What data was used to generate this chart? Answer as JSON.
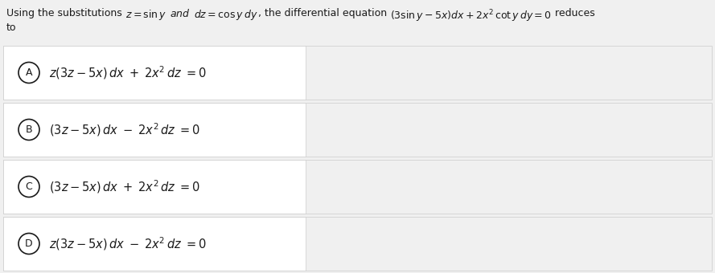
{
  "bg_color": "#f0f0f0",
  "box_bg_color": "#ffffff",
  "box_border_color": "#d0d0d0",
  "text_color": "#1a1a1a",
  "figsize": [
    8.89,
    3.4
  ],
  "dpi": 100,
  "header_parts": [
    {
      "text": "Using the substitutions ",
      "style": "normal",
      "size": 9
    },
    {
      "text": "$z = \\sin y$",
      "style": "italic",
      "size": 9
    },
    {
      "text": " ",
      "style": "normal",
      "size": 9
    },
    {
      "text": "$and$",
      "style": "italic",
      "size": 9
    },
    {
      "text": " ",
      "style": "normal",
      "size": 9
    },
    {
      "text": "$dz = \\cos y\\, dy$",
      "style": "italic",
      "size": 9
    },
    {
      "text": ", the differential equation ",
      "style": "normal",
      "size": 9
    },
    {
      "text": "$(3\\sin y - 5x)dx + 2x^2\\, \\cot y\\, dy = 0$",
      "style": "normal",
      "size": 9
    },
    {
      "text": " reduces",
      "style": "normal",
      "size": 9
    }
  ],
  "options": [
    {
      "label": "A",
      "expr": "$z(3z-5x)\\,dx\\;+\\;2x^2\\,dz\\;=0$"
    },
    {
      "label": "B",
      "expr": "$(3z-5x)\\,dx\\;-\\;2x^2\\,dz\\;=0$"
    },
    {
      "label": "C",
      "expr": "$(3z-5x)\\,dx\\;+\\;2x^2\\,dz\\;=0$"
    },
    {
      "label": "D",
      "expr": "$z(3z-5x)\\,dx\\;-\\;2x^2\\,dz\\;=0$"
    }
  ]
}
